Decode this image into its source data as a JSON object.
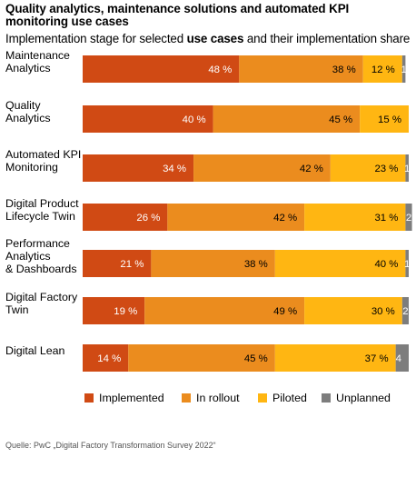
{
  "chart_data": {
    "type": "bar",
    "orientation": "horizontal",
    "stacked": true,
    "title": "Quality analytics, maintenance solutions and automated KPI monitoring use cases",
    "subtitle": {
      "pre": "Implementation stage for selected ",
      "bold": "use cases",
      "post": " and their implementation share"
    },
    "categories": [
      [
        "Maintenance",
        "Analytics"
      ],
      [
        "Quality",
        "Analytics"
      ],
      [
        "Automated KPI",
        "Monitoring"
      ],
      [
        "Digital Product",
        "Lifecycle Twin"
      ],
      [
        "Performance",
        "Analytics",
        "& Dashboards"
      ],
      [
        "Digital Factory",
        "Twin"
      ],
      [
        "Digital Lean"
      ]
    ],
    "series": [
      {
        "name": "Implemented",
        "color": "#d04a14",
        "label_color": "#ffffff",
        "values": [
          48,
          40,
          34,
          26,
          21,
          19,
          14
        ]
      },
      {
        "name": "In rollout",
        "color": "#eb8c1e",
        "label_color": "#000000",
        "values": [
          38,
          45,
          42,
          42,
          38,
          49,
          45
        ]
      },
      {
        "name": "Piloted",
        "color": "#ffb612",
        "label_color": "#000000",
        "values": [
          12,
          15,
          23,
          31,
          40,
          30,
          37
        ]
      },
      {
        "name": "Unplanned",
        "color": "#7d7d7d",
        "label_color": "#ffffff",
        "values": [
          1,
          0,
          1,
          2,
          1,
          2,
          4
        ]
      }
    ],
    "data_labels": [
      [
        "48 %",
        "38 %",
        "12 %",
        "1"
      ],
      [
        "40 %",
        "45 %",
        "15 %",
        ""
      ],
      [
        "34 %",
        "42 %",
        "23 %",
        "1"
      ],
      [
        "26 %",
        "42 %",
        "31 %",
        "2"
      ],
      [
        "21 %",
        "38 %",
        "40 %",
        "1"
      ],
      [
        "19 %",
        "49 %",
        "30 %",
        "2"
      ],
      [
        "14 %",
        "45 %",
        "37 %",
        "4"
      ]
    ],
    "xlim": [
      0,
      100
    ],
    "grid": false,
    "legend_position": "bottom",
    "source": "Quelle: PwC „Digital Factory Transformation Survey 2022“"
  }
}
